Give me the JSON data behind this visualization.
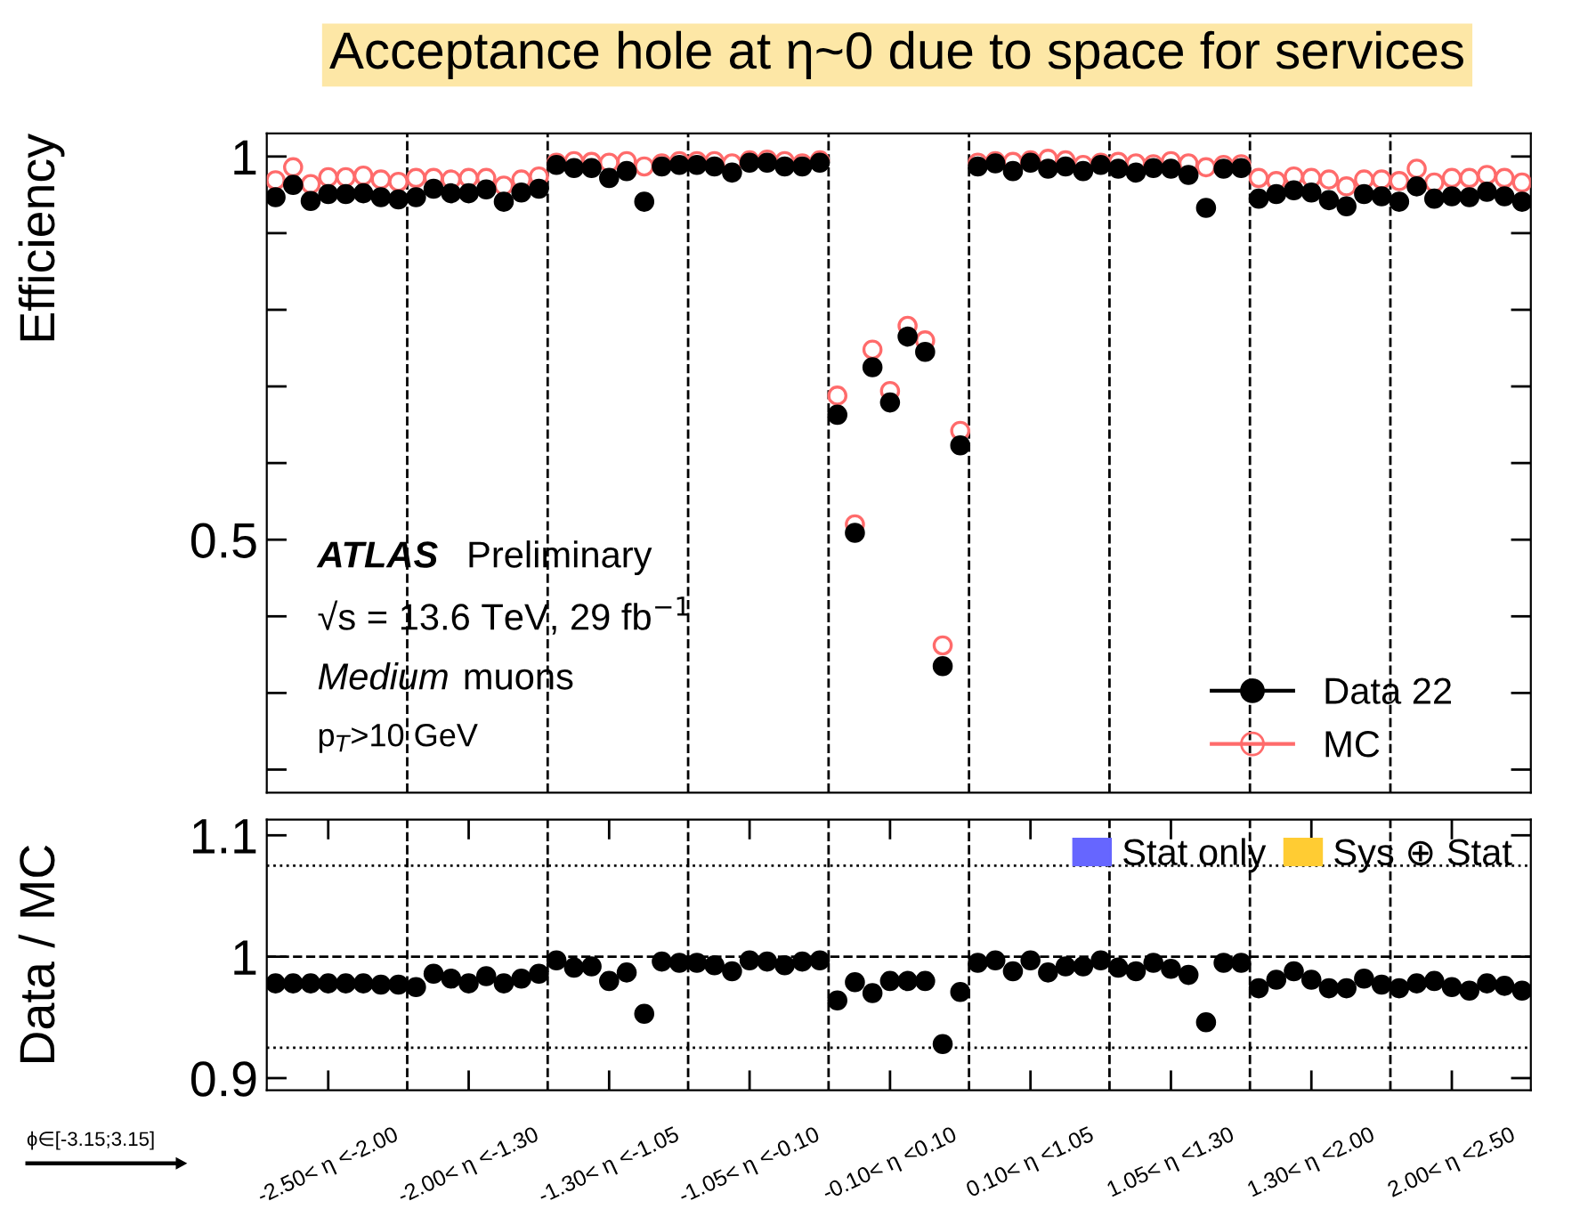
{
  "chart_data": [
    {
      "type": "scatter",
      "title": "Acceptance hole at η~0 due to space for services",
      "ylabel": "Efficiency",
      "categories": [
        null,
        null,
        null,
        null,
        null,
        null,
        null,
        null,
        null,
        null,
        null,
        null,
        null,
        null,
        null,
        null,
        null,
        null,
        null,
        null,
        null,
        null,
        null,
        null,
        null,
        null,
        null,
        null,
        null,
        null,
        null,
        null,
        null,
        null,
        null,
        null,
        null,
        null,
        null,
        null,
        null,
        null,
        null,
        null,
        null,
        null,
        null,
        null,
        null,
        null,
        null,
        null,
        null,
        null,
        null,
        null,
        null,
        null,
        null,
        null,
        null,
        null,
        null,
        null,
        null,
        null,
        null,
        null,
        null,
        null,
        null,
        null
      ],
      "ylim": [
        0.17,
        1.03
      ],
      "yticks": [
        {
          "value": 0.2,
          "label": null
        },
        {
          "value": 0.3,
          "label": null
        },
        {
          "value": 0.4,
          "label": null
        },
        0.5,
        {
          "value": 0.6,
          "label": null
        },
        {
          "value": 0.7,
          "label": null
        },
        {
          "value": 0.8,
          "label": null
        },
        {
          "value": 0.9,
          "label": null
        },
        1
      ],
      "tick_labels": "y",
      "marker": "circle",
      "legend": "bottom right",
      "series": [
        {
          "name": "Data 22",
          "color": "#000000",
          "values": [
            0.947,
            0.963,
            0.942,
            0.951,
            0.951,
            0.952,
            0.947,
            0.944,
            0.947,
            0.958,
            0.952,
            0.952,
            0.957,
            0.941,
            0.953,
            0.958,
            0.989,
            0.985,
            0.985,
            0.972,
            0.981,
            0.941,
            0.987,
            0.989,
            0.989,
            0.987,
            0.979,
            0.992,
            0.992,
            0.987,
            0.987,
            0.992,
            0.663,
            0.509,
            0.725,
            0.679,
            0.765,
            0.745,
            0.335,
            0.623,
            0.987,
            0.991,
            0.981,
            0.992,
            0.984,
            0.987,
            0.981,
            0.989,
            0.984,
            0.979,
            0.985,
            0.984,
            0.976,
            0.933,
            0.984,
            0.985,
            0.945,
            0.951,
            0.956,
            0.953,
            0.943,
            0.935,
            0.951,
            0.948,
            0.941,
            0.961,
            0.945,
            0.948,
            0.947,
            0.954,
            0.948,
            0.941
          ]
        },
        {
          "name": "MC",
          "color": "#ff6b6b",
          "values": [
            0.969,
            0.986,
            0.964,
            0.973,
            0.973,
            0.975,
            0.97,
            0.967,
            0.972,
            0.972,
            0.97,
            0.972,
            0.972,
            0.962,
            0.97,
            0.974,
            0.992,
            0.994,
            0.993,
            0.992,
            0.994,
            0.987,
            0.991,
            0.994,
            0.994,
            0.994,
            0.991,
            0.995,
            0.996,
            0.994,
            0.991,
            0.995,
            0.688,
            0.52,
            0.748,
            0.694,
            0.779,
            0.76,
            0.362,
            0.642,
            0.992,
            0.994,
            0.993,
            0.995,
            0.997,
            0.995,
            0.989,
            0.992,
            0.993,
            0.991,
            0.99,
            0.994,
            0.991,
            0.986,
            0.989,
            0.99,
            0.972,
            0.968,
            0.974,
            0.972,
            0.97,
            0.961,
            0.97,
            0.97,
            0.968,
            0.984,
            0.966,
            0.972,
            0.972,
            0.976,
            0.972,
            0.966
          ]
        }
      ],
      "annotations": [
        "ATLAS",
        "Preliminary",
        "√s = 13.6 TeV, 29 fb$^{−1}$",
        "Medium",
        "muons",
        "p$_{T}$>10 GeV"
      ]
    },
    {
      "type": "scatter",
      "ylabel": "Data / MC",
      "categories": [
        null,
        null,
        null,
        "-2.50< η <-2.00",
        null,
        null,
        null,
        null,
        null,
        null,
        null,
        "-2.00< η <-1.30",
        null,
        null,
        null,
        null,
        null,
        null,
        null,
        "-1.30< η <-1.05",
        null,
        null,
        null,
        null,
        null,
        null,
        null,
        "-1.05< η <-0.10",
        null,
        null,
        null,
        null,
        null,
        null,
        null,
        "-0.10< η <0.10",
        null,
        null,
        null,
        null,
        null,
        null,
        null,
        "0.10< η <1.05",
        null,
        null,
        null,
        null,
        null,
        null,
        null,
        "1.05< η <1.30",
        null,
        null,
        null,
        null,
        null,
        null,
        null,
        "1.30< η <2.00",
        null,
        null,
        null,
        null,
        null,
        null,
        null,
        "2.00< η <2.50",
        null,
        null,
        null,
        null
      ],
      "ylim": [
        0.89,
        1.113
      ],
      "yticks": [
        0.9,
        1,
        1.1
      ],
      "marker": "circle",
      "legend": "top right",
      "series": [
        {
          "color": "#000000",
          "values": [
            0.978,
            0.978,
            0.978,
            0.978,
            0.978,
            0.978,
            0.977,
            0.977,
            0.975,
            0.986,
            0.982,
            0.978,
            0.984,
            0.978,
            0.982,
            0.986,
            0.997,
            0.991,
            0.992,
            0.98,
            0.987,
            0.953,
            0.996,
            0.995,
            0.995,
            0.993,
            0.988,
            0.997,
            0.996,
            0.993,
            0.996,
            0.997,
            0.964,
            0.979,
            0.97,
            0.98,
            0.98,
            0.98,
            0.928,
            0.971,
            0.995,
            0.997,
            0.988,
            0.997,
            0.987,
            0.992,
            0.992,
            0.997,
            0.991,
            0.988,
            0.995,
            0.99,
            0.985,
            0.946,
            0.995,
            0.995,
            0.974,
            0.981,
            0.988,
            0.981,
            0.974,
            0.974,
            0.982,
            0.977,
            0.974,
            0.978,
            0.98,
            0.975,
            0.972,
            0.978,
            0.976,
            0.972
          ]
        },
        {
          "name": "Stat only",
          "type": "area",
          "color": "#6666ff",
          "values": [
            null,
            null,
            null,
            null,
            null,
            null,
            null,
            null,
            null,
            null,
            null,
            null,
            null,
            null,
            null,
            null,
            null,
            null,
            null,
            null,
            null,
            null,
            null,
            null,
            null,
            null,
            null,
            null,
            null,
            null,
            null,
            null,
            null,
            null,
            null,
            null,
            null,
            null,
            null,
            null,
            null,
            null,
            null,
            null,
            null,
            null,
            null,
            null,
            null,
            null,
            null,
            null,
            null,
            null,
            null,
            null,
            null,
            null,
            null,
            null,
            null,
            null,
            null,
            null,
            null,
            null,
            null,
            null,
            null,
            null,
            null,
            null
          ]
        },
        {
          "name": "Sys ⊕ Stat",
          "type": "area",
          "color": "#ffcc33",
          "values": [
            null,
            null,
            null,
            null,
            null,
            null,
            null,
            null,
            null,
            null,
            null,
            null,
            null,
            null,
            null,
            null,
            null,
            null,
            null,
            null,
            null,
            null,
            null,
            null,
            null,
            null,
            null,
            null,
            null,
            null,
            null,
            null,
            null,
            null,
            null,
            null,
            null,
            null,
            null,
            null,
            null,
            null,
            null,
            null,
            null,
            null,
            null,
            null,
            null,
            null,
            null,
            null,
            null,
            null,
            null,
            null,
            null,
            null,
            null,
            null,
            null,
            null,
            null,
            null,
            null,
            null,
            null,
            null,
            null,
            null,
            null,
            null
          ]
        }
      ],
      "ref_lines": [
        {
          "axis": "y",
          "value": 1,
          "line_style": "dashed"
        },
        {
          "axis": "y",
          "value": 1.075,
          "line_style": "dotted"
        },
        {
          "axis": "y",
          "value": 0.925,
          "line_style": "dotted"
        }
      ],
      "annotations": [
        "ϕ∈[-3.15;3.15]"
      ]
    }
  ]
}
